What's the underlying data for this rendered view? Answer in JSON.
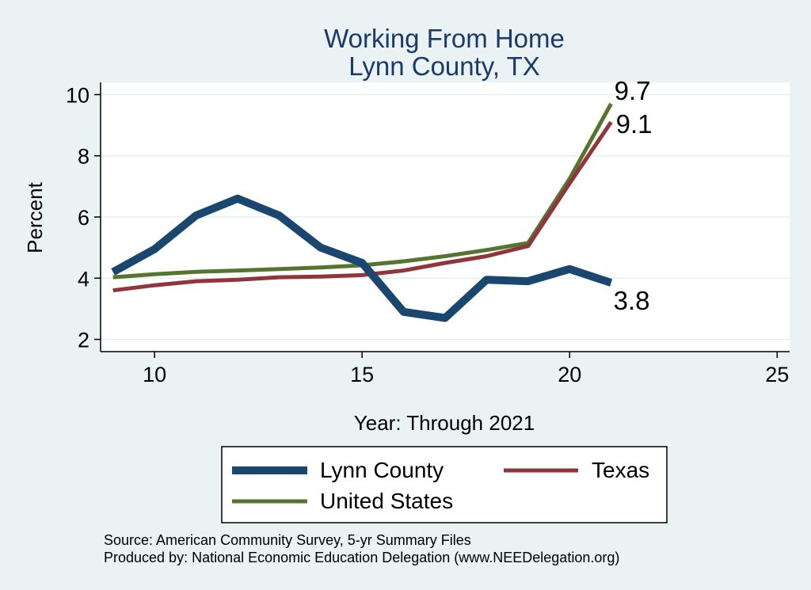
{
  "chart_data": {
    "type": "line",
    "title": [
      "Working From Home",
      "Lynn County, TX"
    ],
    "xlabel": "Year: Through 2021",
    "ylabel": "Percent",
    "xlim": [
      8.7,
      25.3
    ],
    "ylim": [
      1.6,
      10.4
    ],
    "x_ticks": [
      10,
      15,
      20,
      25
    ],
    "y_ticks": [
      2,
      4,
      6,
      8,
      10
    ],
    "grid": true,
    "series": [
      {
        "name": "Lynn County",
        "color": "#1a476f",
        "width": 10,
        "x": [
          9,
          10,
          11,
          12,
          13,
          14,
          15,
          16,
          17,
          18,
          19,
          20,
          21
        ],
        "values": [
          4.2,
          4.95,
          6.05,
          6.6,
          6.05,
          5.0,
          4.5,
          2.9,
          2.7,
          3.95,
          3.9,
          4.3,
          3.85
        ],
        "end_label": "3.8"
      },
      {
        "name": "Texas",
        "color": "#90353b",
        "width": 5,
        "x": [
          9,
          10,
          11,
          12,
          13,
          14,
          15,
          16,
          17,
          18,
          19,
          20,
          21
        ],
        "values": [
          3.6,
          3.77,
          3.9,
          3.95,
          4.03,
          4.05,
          4.1,
          4.25,
          4.5,
          4.72,
          5.05,
          7.1,
          9.1
        ],
        "end_label": "9.1"
      },
      {
        "name": "United States",
        "color": "#55752f",
        "width": 5,
        "x": [
          9,
          10,
          11,
          12,
          13,
          14,
          15,
          16,
          17,
          18,
          19,
          20,
          21
        ],
        "values": [
          4.03,
          4.13,
          4.21,
          4.25,
          4.3,
          4.35,
          4.42,
          4.55,
          4.72,
          4.92,
          5.15,
          7.25,
          9.7
        ],
        "end_label": "9.7"
      }
    ],
    "legend": {
      "position": "bottom",
      "entries": [
        "Lynn County",
        "Texas",
        "United States"
      ]
    }
  },
  "notes": {
    "source": "Source: American Community Survey, 5-yr Summary Files",
    "produced_by": "Produced by: National Economic Education Delegation (www.NEEDelegation.org)"
  }
}
